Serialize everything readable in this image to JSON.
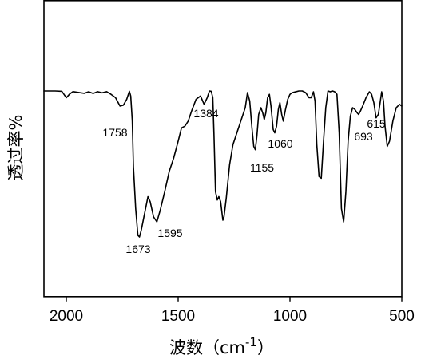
{
  "chart_data": {
    "type": "line",
    "title": "",
    "xlabel": "波数（cm",
    "xlabel_sup": "-1",
    "xlabel_close": "）",
    "ylabel": "透过率%",
    "xlim": [
      2100,
      500
    ],
    "x_reversed": true,
    "grid": false,
    "line_color": "#000000",
    "x_ticks": [
      2000,
      1500,
      1000,
      500
    ],
    "x_tick_labels": [
      "2000",
      "1500",
      "1000",
      "500"
    ],
    "annotations": [
      {
        "text": "1758",
        "x": 1758
      },
      {
        "text": "1384",
        "x": 1384
      },
      {
        "text": "1673",
        "x": 1673
      },
      {
        "text": "1595",
        "x": 1595
      },
      {
        "text": "1155",
        "x": 1155
      },
      {
        "text": "1060",
        "x": 1060
      },
      {
        "text": "693",
        "x": 693
      },
      {
        "text": "615",
        "x": 615
      }
    ],
    "series": [
      {
        "x": [
          2100,
          2050,
          2020,
          2000,
          1985,
          1970,
          1950,
          1920,
          1900,
          1880,
          1860,
          1840,
          1820,
          1800,
          1780,
          1760,
          1745,
          1730,
          1718,
          1712,
          1705,
          1700,
          1690,
          1680,
          1673,
          1665,
          1650,
          1635,
          1625,
          1610,
          1595,
          1580,
          1560,
          1540,
          1520,
          1500,
          1485,
          1470,
          1455,
          1440,
          1420,
          1400,
          1384,
          1370,
          1360,
          1352,
          1345,
          1340,
          1333,
          1325,
          1318,
          1310,
          1300,
          1295,
          1285,
          1270,
          1255,
          1240,
          1220,
          1200,
          1190,
          1180,
          1170,
          1162,
          1155,
          1148,
          1140,
          1130,
          1122,
          1115,
          1108,
          1100,
          1092,
          1085,
          1075,
          1068,
          1060,
          1052,
          1045,
          1037,
          1030,
          1020,
          1010,
          1000,
          990,
          975,
          960,
          945,
          930,
          915,
          905,
          895,
          888,
          880,
          870,
          860,
          850,
          840,
          830,
          820,
          810,
          800,
          790,
          780,
          770,
          760,
          750,
          740,
          730,
          720,
          710,
          700,
          693,
          685,
          675,
          660,
          645,
          635,
          625,
          615,
          605,
          598,
          590,
          582,
          575,
          565,
          555,
          540,
          525,
          510,
          500
        ],
        "y": [
          100,
          100,
          99.8,
          96,
          98.2,
          99.6,
          99.2,
          98.6,
          99.5,
          98.5,
          99.6,
          98.9,
          99.6,
          98,
          96,
          91,
          91.5,
          95,
          99.8,
          97,
          82,
          55,
          30,
          14,
          13,
          17,
          27,
          37,
          34,
          25,
          22,
          29,
          40,
          52,
          60,
          70,
          78,
          79,
          82,
          88,
          95,
          97,
          92,
          96,
          100,
          99.8,
          96,
          75,
          40,
          35,
          37,
          34,
          23,
          25,
          36,
          56,
          68,
          74,
          82,
          90,
          99,
          94,
          78,
          67,
          65,
          73,
          86,
          90,
          87,
          83,
          87,
          96,
          98,
          91,
          77,
          75,
          79,
          89,
          93,
          86,
          82,
          89,
          95,
          98,
          99,
          99.5,
          100,
          100,
          99,
          96,
          96,
          99.5,
          94,
          68,
          49,
          48,
          70,
          90,
          100,
          99.5,
          100,
          99.5,
          98,
          75,
          30,
          22,
          40,
          70,
          85,
          90,
          89,
          87,
          86,
          88,
          91,
          96,
          99.5,
          98,
          93,
          84,
          86,
          92,
          99.5,
          94,
          79,
          67,
          70,
          82,
          90,
          92,
          91
        ]
      }
    ]
  }
}
